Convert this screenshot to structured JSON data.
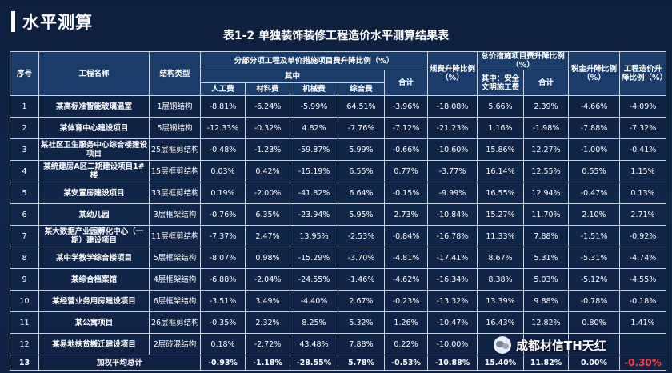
{
  "header": {
    "section_title": "水平测算",
    "table_title": "表1-2 单独装饰装修工程造价水平测算结果表"
  },
  "table": {
    "headers": {
      "seq": "序号",
      "project": "工程名称",
      "structure": "结构类型",
      "group_sub": "分部分项工程及单价措施项目费升降比例（%）",
      "among": "其中",
      "labor": "人工费",
      "material": "材料费",
      "machine": "机械费",
      "comprehensive": "综合费",
      "subtotal": "合计",
      "fees": "规费升降比例（%）",
      "group_total": "总价措施项目费升降比例（%）",
      "safety": "其中：安全文明施工费",
      "total_sum": "合计",
      "tax": "税金升降比例（%）",
      "cost": "工程造价升降比例（%）"
    },
    "rows": [
      [
        "1",
        "某高标准智能玻璃温室",
        "1层钢结构",
        "-8.81%",
        "-6.24%",
        "-5.99%",
        "64.51%",
        "-3.96%",
        "-18.08%",
        "5.66%",
        "2.39%",
        "-4.66%",
        "-4.09%"
      ],
      [
        "2",
        "某体育中心建设项目",
        "5层钢结构",
        "-12.33%",
        "-0.32%",
        "4.82%",
        "-7.76%",
        "-7.12%",
        "-21.23%",
        "1.16%",
        "-1.98%",
        "-7.88%",
        "-7.32%"
      ],
      [
        "3",
        "某社区卫生服务中心综合楼建设项目",
        "25层框剪结构",
        "-0.48%",
        "-1.23%",
        "-59.87%",
        "5.99%",
        "-0.66%",
        "-10.60%",
        "15.86%",
        "12.27%",
        "-1.00%",
        "-0.41%"
      ],
      [
        "4",
        "某统建房A区二期建设项目1#楼",
        "15层框剪结构",
        "0.03%",
        "0.42%",
        "-15.19%",
        "6.55%",
        "0.77%",
        "-3.77%",
        "16.14%",
        "12.55%",
        "0.55%",
        "1.15%"
      ],
      [
        "5",
        "某安置房建设项目",
        "33层框剪结构",
        "0.19%",
        "-2.00%",
        "-41.82%",
        "6.64%",
        "-0.15%",
        "-9.99%",
        "16.55%",
        "12.94%",
        "-0.47%",
        "0.13%"
      ],
      [
        "6",
        "某幼儿园",
        "3层框架结构",
        "-0.76%",
        "6.35%",
        "-23.94%",
        "5.95%",
        "2.73%",
        "-10.84%",
        "15.27%",
        "11.70%",
        "2.10%",
        "2.71%"
      ],
      [
        "7",
        "某大数据产业园孵化中心（一期）建设项目",
        "11层框剪结构",
        "-7.37%",
        "2.47%",
        "13.95%",
        "-2.53%",
        "-0.84%",
        "-16.78%",
        "11.33%",
        "7.88%",
        "-1.51%",
        "-0.92%"
      ],
      [
        "8",
        "某中学教学综合楼项目",
        "5层框架结构",
        "-8.07%",
        "0.98%",
        "-15.29%",
        "-3.70%",
        "-4.81%",
        "-17.41%",
        "8.67%",
        "5.31%",
        "-5.31%",
        "-4.74%"
      ],
      [
        "9",
        "某综合档案馆",
        "4层框架结构",
        "-6.88%",
        "-2.04%",
        "-24.55%",
        "-1.46%",
        "-4.62%",
        "-16.34%",
        "8.38%",
        "5.03%",
        "-5.12%",
        "-4.55%"
      ],
      [
        "10",
        "某经营业务用房建设项目",
        "6层框架结构",
        "-3.51%",
        "3.49%",
        "-4.40%",
        "2.67%",
        "-0.23%",
        "-13.32%",
        "13.39%",
        "9.88%",
        "-0.78%",
        "-0.18%"
      ],
      [
        "11",
        "某公寓项目",
        "26层框剪结构",
        "-0.35%",
        "2.32%",
        "8.25%",
        "5.32%",
        "1.26%",
        "-10.47%",
        "16.43%",
        "12.82%",
        "0.80%",
        "1.41%"
      ],
      [
        "12",
        "某易地扶贫搬迁建设项目",
        "2层砖混结构",
        "0.18%",
        "-2.72%",
        "43.48%",
        "7.88%",
        "0.22%",
        "-10.00%",
        "17.",
        "",
        "",
        ""
      ]
    ],
    "avg_row": {
      "seq": "13",
      "label": "加权平均总计",
      "values": [
        "-0.93%",
        "-1.18%",
        "-28.55%",
        "5.78%",
        "-0.53%",
        "-10.88%",
        "15.40%",
        "11.82%",
        "0.00%"
      ],
      "cost_value": "-0.30%"
    }
  },
  "watermark": {
    "icon": "wechat-icon",
    "text": "成都材信TH天红"
  }
}
